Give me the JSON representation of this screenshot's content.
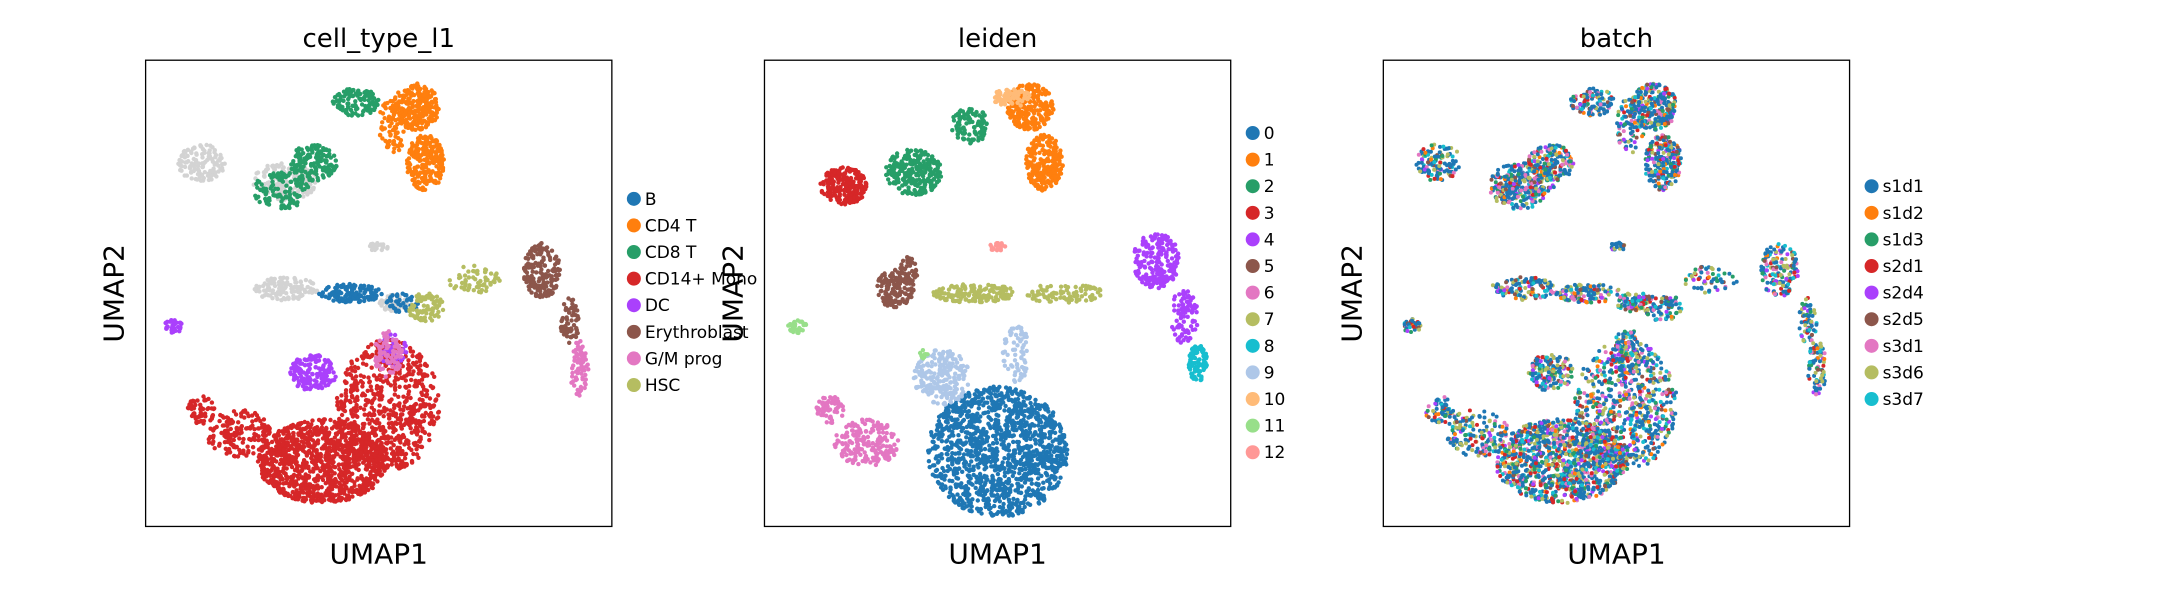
{
  "chart_data": [
    {
      "type": "scatter",
      "title": "cell_type_l1",
      "xlabel": "UMAP1",
      "ylabel": "UMAP2",
      "grid": false,
      "ticks": false,
      "legend_placement": "right",
      "series": [
        {
          "name": "B",
          "color": "#1f77b4"
        },
        {
          "name": "CD4 T",
          "color": "#ff7f0e"
        },
        {
          "name": "CD8 T",
          "color": "#279e68"
        },
        {
          "name": "CD14+ Mono",
          "color": "#d62728"
        },
        {
          "name": "DC",
          "color": "#aa40fc"
        },
        {
          "name": "Erythroblast",
          "color": "#8c564b"
        },
        {
          "name": "G/M prog",
          "color": "#e377c2"
        },
        {
          "name": "HSC",
          "color": "#b5bd61"
        }
      ]
    },
    {
      "type": "scatter",
      "title": "leiden",
      "xlabel": "UMAP1",
      "ylabel": "UMAP2",
      "grid": false,
      "ticks": false,
      "legend_placement": "right",
      "series": [
        {
          "name": "0",
          "color": "#1f77b4"
        },
        {
          "name": "1",
          "color": "#ff7f0e"
        },
        {
          "name": "2",
          "color": "#279e68"
        },
        {
          "name": "3",
          "color": "#d62728"
        },
        {
          "name": "4",
          "color": "#aa40fc"
        },
        {
          "name": "5",
          "color": "#8c564b"
        },
        {
          "name": "6",
          "color": "#e377c2"
        },
        {
          "name": "7",
          "color": "#b5bd61"
        },
        {
          "name": "8",
          "color": "#17becf"
        },
        {
          "name": "9",
          "color": "#aec7e8"
        },
        {
          "name": "10",
          "color": "#ffbb78"
        },
        {
          "name": "11",
          "color": "#98df8a"
        },
        {
          "name": "12",
          "color": "#ff9896"
        }
      ]
    },
    {
      "type": "scatter",
      "title": "batch",
      "xlabel": "UMAP1",
      "ylabel": "UMAP2",
      "grid": false,
      "ticks": false,
      "legend_placement": "right",
      "series": [
        {
          "name": "s1d1",
          "color": "#1f77b4"
        },
        {
          "name": "s1d2",
          "color": "#ff7f0e"
        },
        {
          "name": "s1d3",
          "color": "#279e68"
        },
        {
          "name": "s2d1",
          "color": "#d62728"
        },
        {
          "name": "s2d4",
          "color": "#aa40fc"
        },
        {
          "name": "s2d5",
          "color": "#8c564b"
        },
        {
          "name": "s3d1",
          "color": "#e377c2"
        },
        {
          "name": "s3d6",
          "color": "#b5bd61"
        },
        {
          "name": "s3d7",
          "color": "#17becf"
        }
      ]
    }
  ]
}
